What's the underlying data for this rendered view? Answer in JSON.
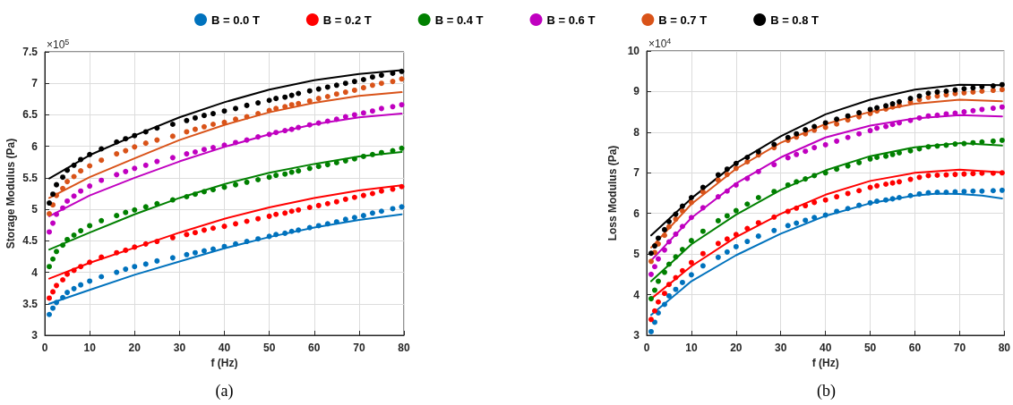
{
  "chart_data": [
    {
      "type": "scatter",
      "xlabel": "f (Hz)",
      "ylabel": "Storage Modulus (Pa)",
      "annotations": [
        "×10$^{5}$",
        "(a)"
      ],
      "xlim": [
        0,
        80
      ],
      "xticks": [
        0,
        10,
        20,
        30,
        40,
        50,
        60,
        70,
        80
      ],
      "ylim": [
        3,
        7.5
      ],
      "yticks": [
        3,
        3.5,
        4,
        4.5,
        5,
        5.5,
        6,
        6.5,
        7,
        7.5
      ],
      "grid": true,
      "legend": "top",
      "x": [
        1,
        1.8,
        2.6,
        4,
        5,
        6.5,
        8,
        10,
        12.6,
        16,
        18,
        20,
        22.5,
        25,
        28.5,
        31.6,
        33.5,
        35.5,
        37.5,
        40,
        42.5,
        45,
        47.5,
        50,
        51.5,
        53.5,
        55,
        56.5,
        59,
        61,
        63,
        65,
        67,
        69,
        71,
        73,
        75,
        77.5,
        79.5
      ],
      "series": [
        {
          "name": "B = 0.0 T",
          "marker": "circle",
          "color": "#0072bd",
          "values": [
            3.33,
            3.43,
            3.52,
            3.6,
            3.68,
            3.74,
            3.8,
            3.86,
            3.93,
            4.0,
            4.05,
            4.09,
            4.13,
            4.18,
            4.23,
            4.28,
            4.31,
            4.34,
            4.37,
            4.41,
            4.45,
            4.49,
            4.53,
            4.57,
            4.6,
            4.62,
            4.65,
            4.67,
            4.71,
            4.74,
            4.77,
            4.8,
            4.84,
            4.87,
            4.9,
            4.94,
            4.97,
            5.01,
            5.04
          ]
        },
        {
          "name": "B = 0.2 T",
          "marker": "circle",
          "color": "#ff0000",
          "values": [
            3.59,
            3.69,
            3.79,
            3.88,
            3.97,
            4.03,
            4.09,
            4.16,
            4.24,
            4.31,
            4.35,
            4.4,
            4.45,
            4.49,
            4.55,
            4.6,
            4.63,
            4.67,
            4.7,
            4.73,
            4.77,
            4.81,
            4.85,
            4.89,
            4.92,
            4.94,
            4.97,
            4.99,
            5.03,
            5.06,
            5.09,
            5.12,
            5.16,
            5.19,
            5.22,
            5.25,
            5.29,
            5.32,
            5.36
          ]
        },
        {
          "name": "B = 0.4 T",
          "marker": "circle",
          "color": "#008000",
          "values": [
            4.09,
            4.21,
            4.33,
            4.43,
            4.52,
            4.59,
            4.66,
            4.74,
            4.82,
            4.9,
            4.95,
            4.99,
            5.04,
            5.09,
            5.15,
            5.2,
            5.24,
            5.28,
            5.31,
            5.35,
            5.39,
            5.43,
            5.47,
            5.51,
            5.54,
            5.56,
            5.59,
            5.61,
            5.65,
            5.68,
            5.71,
            5.74,
            5.77,
            5.8,
            5.84,
            5.87,
            5.9,
            5.93,
            5.97
          ]
        },
        {
          "name": "B = 0.6 T",
          "marker": "circle",
          "color": "#c000c0",
          "values": [
            4.64,
            4.78,
            4.92,
            5.02,
            5.13,
            5.21,
            5.29,
            5.37,
            5.46,
            5.55,
            5.6,
            5.65,
            5.7,
            5.76,
            5.82,
            5.88,
            5.91,
            5.95,
            5.98,
            6.02,
            6.06,
            6.1,
            6.15,
            6.19,
            6.22,
            6.25,
            6.27,
            6.3,
            6.34,
            6.37,
            6.4,
            6.43,
            6.47,
            6.5,
            6.53,
            6.56,
            6.6,
            6.63,
            6.66
          ]
        },
        {
          "name": "B = 0.7 T",
          "marker": "circle",
          "color": "#d95319",
          "values": [
            4.93,
            5.07,
            5.22,
            5.33,
            5.44,
            5.52,
            5.61,
            5.69,
            5.78,
            5.88,
            5.93,
            5.99,
            6.05,
            6.1,
            6.16,
            6.23,
            6.27,
            6.31,
            6.35,
            6.38,
            6.43,
            6.47,
            6.52,
            6.57,
            6.6,
            6.63,
            6.66,
            6.68,
            6.72,
            6.76,
            6.79,
            6.83,
            6.86,
            6.89,
            6.93,
            6.97,
            7.0,
            7.03,
            7.07
          ]
        },
        {
          "name": "B = 0.8 T",
          "marker": "circle",
          "color": "#000000",
          "values": [
            5.1,
            5.24,
            5.39,
            5.51,
            5.62,
            5.7,
            5.79,
            5.87,
            5.96,
            6.07,
            6.12,
            6.17,
            6.23,
            6.29,
            6.35,
            6.41,
            6.45,
            6.49,
            6.52,
            6.56,
            6.6,
            6.65,
            6.69,
            6.73,
            6.76,
            6.78,
            6.81,
            6.84,
            6.88,
            6.91,
            6.94,
            6.97,
            7.0,
            7.03,
            7.06,
            7.1,
            7.13,
            7.16,
            7.19
          ]
        },
        {
          "type": "line",
          "marker": "none",
          "color": "#0072bd",
          "x": [
            1,
            10,
            20,
            30,
            40,
            50,
            60,
            70,
            79.5
          ],
          "values": [
            3.5,
            3.72,
            3.96,
            4.17,
            4.38,
            4.56,
            4.71,
            4.83,
            4.92
          ]
        },
        {
          "type": "line",
          "marker": "none",
          "color": "#ff0000",
          "x": [
            1,
            10,
            20,
            30,
            40,
            50,
            60,
            70,
            79.5
          ],
          "values": [
            3.9,
            4.15,
            4.39,
            4.63,
            4.85,
            5.03,
            5.18,
            5.3,
            5.38
          ]
        },
        {
          "type": "line",
          "marker": "none",
          "color": "#008000",
          "x": [
            1,
            10,
            20,
            30,
            40,
            50,
            60,
            70,
            79.5
          ],
          "values": [
            4.36,
            4.63,
            4.92,
            5.18,
            5.4,
            5.58,
            5.72,
            5.84,
            5.91
          ]
        },
        {
          "type": "line",
          "marker": "none",
          "color": "#c000c0",
          "x": [
            1,
            10,
            20,
            30,
            40,
            50,
            60,
            70,
            79.5
          ],
          "values": [
            4.89,
            5.22,
            5.5,
            5.76,
            5.99,
            6.19,
            6.35,
            6.46,
            6.52
          ]
        },
        {
          "type": "line",
          "marker": "none",
          "color": "#d95319",
          "x": [
            1,
            10,
            20,
            30,
            40,
            50,
            60,
            70,
            79.5
          ],
          "values": [
            5.18,
            5.51,
            5.81,
            6.1,
            6.34,
            6.54,
            6.69,
            6.8,
            6.86
          ]
        },
        {
          "type": "line",
          "marker": "none",
          "color": "#000000",
          "x": [
            1,
            10,
            20,
            30,
            40,
            50,
            60,
            70,
            79.5
          ],
          "values": [
            5.49,
            5.86,
            6.17,
            6.46,
            6.7,
            6.9,
            7.05,
            7.15,
            7.21
          ]
        }
      ]
    },
    {
      "type": "scatter",
      "xlabel": "f (Hz)",
      "ylabel": "Loss Modulus (Pa)",
      "annotations": [
        "×10$^{4}$",
        "(b)"
      ],
      "xlim": [
        0,
        80
      ],
      "xticks": [
        0,
        10,
        20,
        30,
        40,
        50,
        60,
        70,
        80
      ],
      "ylim": [
        3,
        10
      ],
      "yticks": [
        3,
        4,
        5,
        6,
        7,
        8,
        9,
        10
      ],
      "grid": true,
      "x": [
        1,
        1.8,
        2.6,
        4,
        5,
        6.5,
        8,
        10,
        12.6,
        16,
        18,
        20,
        22.5,
        25,
        28.5,
        31.6,
        33.5,
        35.5,
        37.5,
        40,
        42.5,
        45,
        47.5,
        50,
        51.5,
        53.5,
        55,
        56.5,
        59,
        61,
        63,
        65,
        67,
        69,
        71,
        73,
        75,
        77.5,
        79.5
      ],
      "series": [
        {
          "marker": "circle",
          "color": "#0072bd",
          "values": [
            3.09,
            3.32,
            3.55,
            3.76,
            3.97,
            4.13,
            4.3,
            4.49,
            4.71,
            4.92,
            5.05,
            5.18,
            5.31,
            5.44,
            5.58,
            5.7,
            5.76,
            5.83,
            5.9,
            5.96,
            6.05,
            6.12,
            6.2,
            6.26,
            6.3,
            6.33,
            6.36,
            6.39,
            6.44,
            6.48,
            6.51,
            6.52,
            6.52,
            6.53,
            6.54,
            6.55,
            6.55,
            6.56,
            6.57
          ]
        },
        {
          "marker": "circle",
          "color": "#ff0000",
          "values": [
            3.39,
            3.6,
            3.82,
            4.03,
            4.25,
            4.42,
            4.59,
            4.79,
            5.01,
            5.26,
            5.37,
            5.48,
            5.63,
            5.77,
            5.91,
            6.05,
            6.13,
            6.19,
            6.27,
            6.33,
            6.41,
            6.49,
            6.56,
            6.64,
            6.68,
            6.72,
            6.75,
            6.78,
            6.84,
            6.89,
            6.93,
            6.94,
            6.95,
            6.96,
            6.97,
            6.98,
            6.99,
            6.99,
            7.0
          ]
        },
        {
          "marker": "circle",
          "color": "#008000",
          "values": [
            3.9,
            4.11,
            4.33,
            4.55,
            4.75,
            4.93,
            5.11,
            5.33,
            5.56,
            5.82,
            5.94,
            6.07,
            6.23,
            6.39,
            6.54,
            6.7,
            6.78,
            6.85,
            6.93,
            7.0,
            7.09,
            7.17,
            7.25,
            7.34,
            7.38,
            7.41,
            7.45,
            7.49,
            7.54,
            7.59,
            7.64,
            7.66,
            7.68,
            7.71,
            7.72,
            7.74,
            7.76,
            7.78,
            7.8
          ]
        },
        {
          "marker": "circle",
          "color": "#c000c0",
          "values": [
            4.5,
            4.69,
            4.88,
            5.1,
            5.3,
            5.49,
            5.68,
            5.9,
            6.14,
            6.41,
            6.55,
            6.7,
            6.86,
            7.03,
            7.2,
            7.37,
            7.45,
            7.53,
            7.62,
            7.69,
            7.78,
            7.87,
            7.96,
            8.04,
            8.1,
            8.14,
            8.19,
            8.23,
            8.29,
            8.35,
            8.4,
            8.42,
            8.45,
            8.47,
            8.5,
            8.53,
            8.56,
            8.59,
            8.62
          ]
        },
        {
          "marker": "circle",
          "color": "#d95319",
          "values": [
            4.82,
            5.04,
            5.25,
            5.46,
            5.67,
            5.86,
            6.06,
            6.27,
            6.53,
            6.82,
            6.96,
            7.11,
            7.27,
            7.44,
            7.62,
            7.8,
            7.88,
            7.96,
            8.05,
            8.12,
            8.2,
            8.3,
            8.38,
            8.46,
            8.52,
            8.57,
            8.62,
            8.66,
            8.74,
            8.8,
            8.86,
            8.89,
            8.92,
            8.95,
            8.97,
            8.99,
            9.01,
            9.03,
            9.05
          ]
        },
        {
          "marker": "circle",
          "color": "#000000",
          "values": [
            5.02,
            5.2,
            5.39,
            5.6,
            5.8,
            5.98,
            6.18,
            6.39,
            6.64,
            6.95,
            7.09,
            7.23,
            7.38,
            7.52,
            7.7,
            7.87,
            7.96,
            8.06,
            8.14,
            8.23,
            8.32,
            8.4,
            8.48,
            8.56,
            8.6,
            8.65,
            8.7,
            8.75,
            8.83,
            8.89,
            8.96,
            8.99,
            9.01,
            9.04,
            9.07,
            9.09,
            9.12,
            9.14,
            9.17
          ]
        },
        {
          "type": "line",
          "marker": "none",
          "color": "#0072bd",
          "x": [
            1,
            10,
            20,
            30,
            40,
            50,
            60,
            65,
            70,
            75,
            79.5
          ],
          "values": [
            3.5,
            4.33,
            4.97,
            5.5,
            5.94,
            6.25,
            6.44,
            6.49,
            6.48,
            6.44,
            6.37
          ]
        },
        {
          "type": "line",
          "marker": "none",
          "color": "#ff0000",
          "x": [
            1,
            10,
            20,
            30,
            40,
            50,
            60,
            70,
            79.5
          ],
          "values": [
            3.9,
            4.7,
            5.42,
            5.99,
            6.46,
            6.8,
            7.0,
            7.08,
            7.01
          ]
        },
        {
          "type": "line",
          "marker": "none",
          "color": "#008000",
          "x": [
            1,
            10,
            20,
            30,
            40,
            50,
            60,
            70,
            79.5
          ],
          "values": [
            4.33,
            5.24,
            5.97,
            6.58,
            7.06,
            7.41,
            7.63,
            7.73,
            7.67
          ]
        },
        {
          "type": "line",
          "marker": "none",
          "color": "#c000c0",
          "x": [
            1,
            10,
            20,
            30,
            40,
            50,
            60,
            70,
            79.5
          ],
          "values": [
            4.84,
            5.89,
            6.74,
            7.38,
            7.87,
            8.16,
            8.34,
            8.42,
            8.39
          ]
        },
        {
          "type": "line",
          "marker": "none",
          "color": "#d95319",
          "x": [
            1,
            10,
            20,
            30,
            40,
            50,
            60,
            70,
            79.5
          ],
          "values": [
            5.16,
            6.23,
            7.1,
            7.74,
            8.2,
            8.5,
            8.7,
            8.8,
            8.76
          ]
        },
        {
          "type": "line",
          "marker": "none",
          "color": "#000000",
          "x": [
            1,
            10,
            20,
            30,
            40,
            50,
            60,
            70,
            79.5
          ],
          "values": [
            5.46,
            6.37,
            7.24,
            7.9,
            8.44,
            8.8,
            9.05,
            9.17,
            9.16
          ]
        }
      ]
    }
  ]
}
